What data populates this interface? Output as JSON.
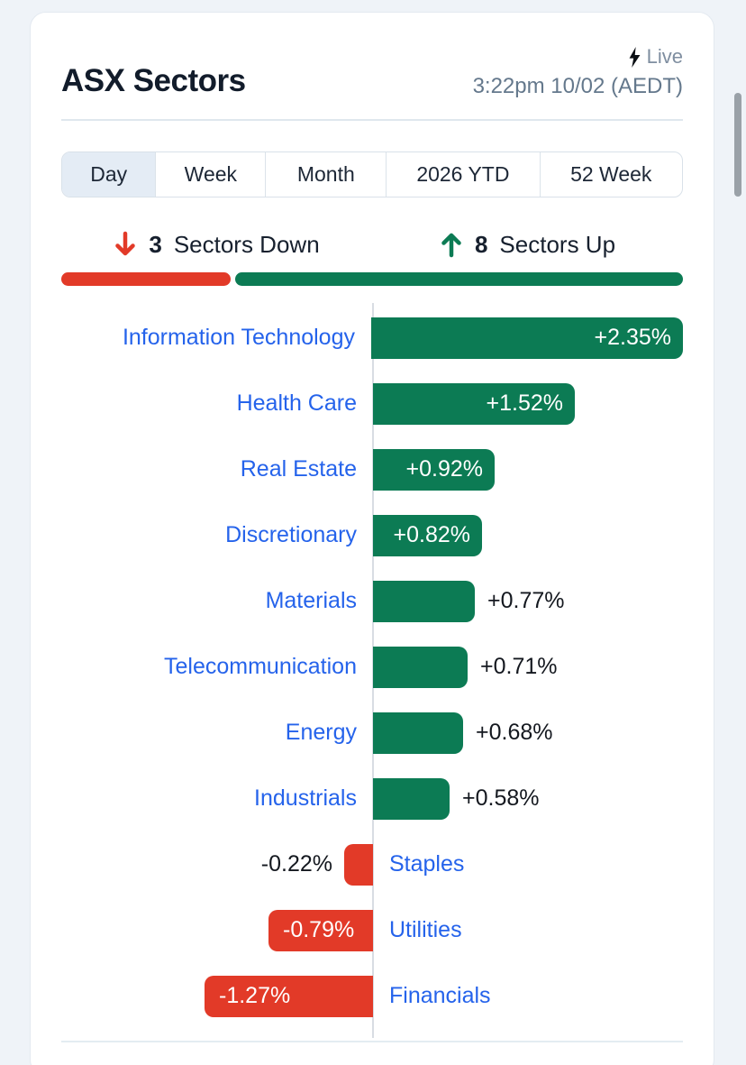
{
  "header": {
    "title": "ASX Sectors",
    "live_label": "Live",
    "timestamp": "3:22pm 10/02 (AEDT)"
  },
  "tabs": [
    {
      "label": "Day",
      "active": true
    },
    {
      "label": "Week",
      "active": false
    },
    {
      "label": "Month",
      "active": false
    },
    {
      "label": "2026 YTD",
      "active": false
    },
    {
      "label": "52 Week",
      "active": false
    }
  ],
  "summary": {
    "down_count": "3",
    "down_label": "Sectors Down",
    "up_count": "8",
    "up_label": "Sectors Up"
  },
  "chart_data": {
    "type": "bar",
    "orientation": "horizontal",
    "title": "ASX Sectors daily performance",
    "unit": "%",
    "axis_max": 2.35,
    "xlim": [
      -2.35,
      2.35
    ],
    "grid": false,
    "legend": false,
    "series": [
      {
        "sector": "Information Technology",
        "value": 2.35,
        "display": "+2.35%",
        "direction": "up",
        "value_label_position": "inside"
      },
      {
        "sector": "Health Care",
        "value": 1.52,
        "display": "+1.52%",
        "direction": "up",
        "value_label_position": "inside"
      },
      {
        "sector": "Real Estate",
        "value": 0.92,
        "display": "+0.92%",
        "direction": "up",
        "value_label_position": "inside"
      },
      {
        "sector": "Discretionary",
        "value": 0.82,
        "display": "+0.82%",
        "direction": "up",
        "value_label_position": "inside"
      },
      {
        "sector": "Materials",
        "value": 0.77,
        "display": "+0.77%",
        "direction": "up",
        "value_label_position": "outside"
      },
      {
        "sector": "Telecommunication",
        "value": 0.71,
        "display": "+0.71%",
        "direction": "up",
        "value_label_position": "outside"
      },
      {
        "sector": "Energy",
        "value": 0.68,
        "display": "+0.68%",
        "direction": "up",
        "value_label_position": "outside"
      },
      {
        "sector": "Industrials",
        "value": 0.58,
        "display": "+0.58%",
        "direction": "up",
        "value_label_position": "outside"
      },
      {
        "sector": "Staples",
        "value": -0.22,
        "display": "-0.22%",
        "direction": "down",
        "value_label_position": "outside"
      },
      {
        "sector": "Utilities",
        "value": -0.79,
        "display": "-0.79%",
        "direction": "down",
        "value_label_position": "inside"
      },
      {
        "sector": "Financials",
        "value": -1.27,
        "display": "-1.27%",
        "direction": "down",
        "value_label_position": "inside"
      }
    ]
  },
  "colors": {
    "positive": "#0c7b54",
    "negative": "#e23a28",
    "sector_link": "#2563eb",
    "title_text": "#121c2b",
    "muted_text": "#64788c"
  }
}
